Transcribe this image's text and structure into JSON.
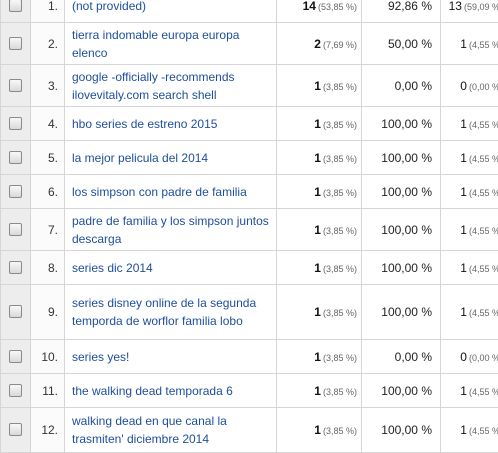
{
  "rows": [
    {
      "num": "1.",
      "keyword": "(not provided)",
      "sessions": "14",
      "sessions_pct": "(53,85 %)",
      "rate": "92,86 %",
      "last": "13",
      "last_pct": "(59,09 %)"
    },
    {
      "num": "2.",
      "keyword": "tierra indomable europa europa elenco",
      "sessions": "2",
      "sessions_pct": "(7,69 %)",
      "rate": "50,00 %",
      "last": "1",
      "last_pct": "(4,55 %)"
    },
    {
      "num": "3.",
      "keyword": "google -officially -recommends ilovevitaly.com search shell",
      "sessions": "1",
      "sessions_pct": "(3,85 %)",
      "rate": "0,00 %",
      "last": "0",
      "last_pct": "(0,00 %)"
    },
    {
      "num": "4.",
      "keyword": "hbo series de estreno 2015",
      "sessions": "1",
      "sessions_pct": "(3,85 %)",
      "rate": "100,00 %",
      "last": "1",
      "last_pct": "(4,55 %)"
    },
    {
      "num": "5.",
      "keyword": "la mejor pelicula del 2014",
      "sessions": "1",
      "sessions_pct": "(3,85 %)",
      "rate": "100,00 %",
      "last": "1",
      "last_pct": "(4,55 %)"
    },
    {
      "num": "6.",
      "keyword": "los simpson con padre de familia",
      "sessions": "1",
      "sessions_pct": "(3,85 %)",
      "rate": "100,00 %",
      "last": "1",
      "last_pct": "(4,55 %)"
    },
    {
      "num": "7.",
      "keyword": "padre de familia y los simpson juntos descarga",
      "sessions": "1",
      "sessions_pct": "(3,85 %)",
      "rate": "100,00 %",
      "last": "1",
      "last_pct": "(4,55 %)"
    },
    {
      "num": "8.",
      "keyword": "series dic 2014",
      "sessions": "1",
      "sessions_pct": "(3,85 %)",
      "rate": "100,00 %",
      "last": "1",
      "last_pct": "(4,55 %)"
    },
    {
      "num": "9.",
      "keyword": "series disney online de la segunda temporda de worflor familia lobo",
      "sessions": "1",
      "sessions_pct": "(3,85 %)",
      "rate": "100,00 %",
      "last": "1",
      "last_pct": "(4,55 %)"
    },
    {
      "num": "10.",
      "keyword": "series yes!",
      "sessions": "1",
      "sessions_pct": "(3,85 %)",
      "rate": "0,00 %",
      "last": "0",
      "last_pct": "(0,00 %)"
    },
    {
      "num": "11.",
      "keyword": "the walking dead temporada 6",
      "sessions": "1",
      "sessions_pct": "(3,85 %)",
      "rate": "100,00 %",
      "last": "1",
      "last_pct": "(4,55 %)"
    },
    {
      "num": "12.",
      "keyword": "walking dead en que canal la trasmiten' diciembre 2014",
      "sessions": "1",
      "sessions_pct": "(3,85 %)",
      "rate": "100,00 %",
      "last": "1",
      "last_pct": "(4,55 %)"
    }
  ],
  "colors": {
    "link": "#1e4e9c",
    "border": "#d6d6d6",
    "checkbox_cell": "#ededed"
  }
}
